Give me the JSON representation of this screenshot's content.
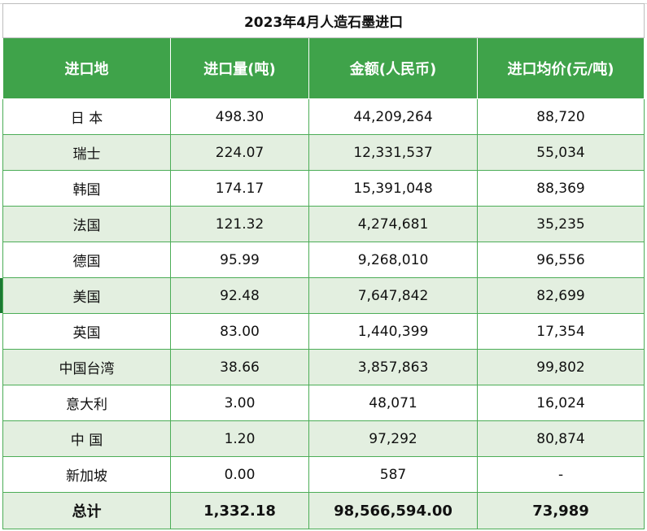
{
  "title": "2023年4月人造石墨进口",
  "headers": [
    "进口地",
    "进口量(吨)",
    "金额(人民币)",
    "进口均价(元/吨)"
  ],
  "rows": [
    [
      "日 本",
      "498.30",
      "44,209,264",
      "88,720"
    ],
    [
      "瑞士",
      "224.07",
      "12,331,537",
      "55,034"
    ],
    [
      "韩国",
      "174.17",
      "15,391,048",
      "88,369"
    ],
    [
      "法国",
      "121.32",
      "4,274,681",
      "35,235"
    ],
    [
      "德国",
      "95.99",
      "9,268,010",
      "96,556"
    ],
    [
      "美国",
      "92.48",
      "7,647,842",
      "82,699"
    ],
    [
      "英国",
      "83.00",
      "1,440,399",
      "17,354"
    ],
    [
      "中国台湾",
      "38.66",
      "3,857,863",
      "99,802"
    ],
    [
      "意大利",
      "3.00",
      "48,071",
      "16,024"
    ],
    [
      "中 国",
      "1.20",
      "97,292",
      "80,874"
    ],
    [
      "新加坡",
      "0.00",
      "587",
      "-"
    ]
  ],
  "total": [
    "总计",
    "1,332.18",
    "98,566,594.00",
    "73,989"
  ],
  "colors": {
    "header_bg": "#3fa34a",
    "stripe_bg": "#e3efe0",
    "grid_line": "#4cad57"
  }
}
